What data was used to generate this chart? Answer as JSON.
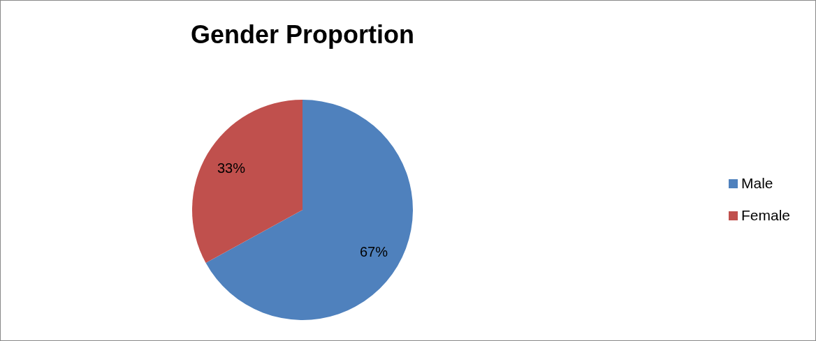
{
  "chart_data": {
    "type": "pie",
    "title": "Gender Proportion",
    "categories": [
      "Male",
      "Female"
    ],
    "values": [
      67,
      33
    ],
    "colors": [
      "#4f81bd",
      "#c0504d"
    ],
    "value_labels": [
      "67%",
      "33%"
    ],
    "legend": "right"
  }
}
